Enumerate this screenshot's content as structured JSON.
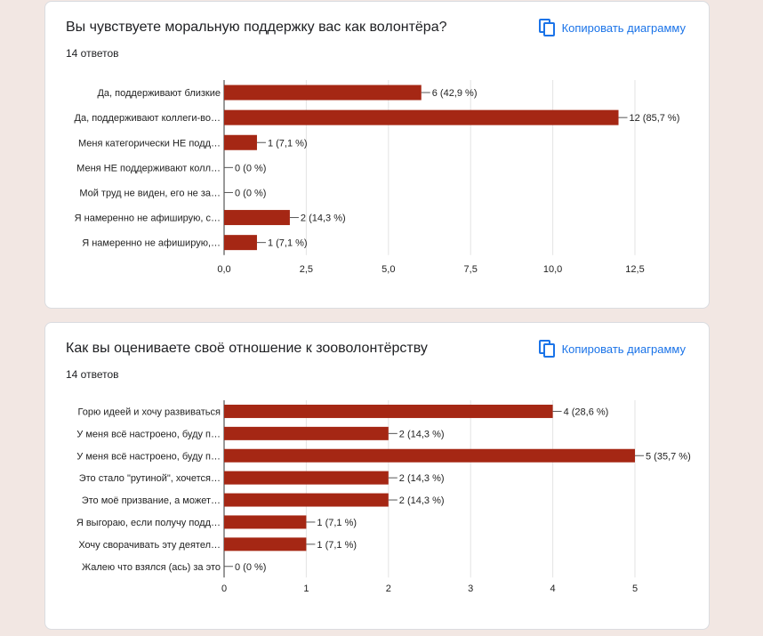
{
  "copy_label": "Копировать диаграмму",
  "copy_icon": "copy-icon",
  "bar_color": "#a52714",
  "questions": [
    {
      "title": "Вы чувствуете моральную поддержку вас как волонтёра?",
      "responses": "14 ответов",
      "chart_data": {
        "type": "bar",
        "orientation": "horizontal",
        "categories": [
          "Да, поддерживают близкие",
          "Да, поддерживают коллеги-во…",
          "Меня категорически НЕ подд…",
          "Меня НЕ поддерживают колл…",
          "Мой труд не виден, его не за…",
          "Я намеренно не афиширую, с…",
          "Я намеренно не афиширую,…"
        ],
        "values": [
          6,
          12,
          1,
          0,
          0,
          2,
          1
        ],
        "data_labels": [
          "6 (42,9 %)",
          "12 (85,7 %)",
          "1 (7,1 %)",
          "0 (0 %)",
          "0 (0 %)",
          "2 (14,3 %)",
          "1 (7,1 %)"
        ],
        "xlim": [
          0,
          12.5
        ],
        "ticks": [
          0,
          2.5,
          5,
          7.5,
          10,
          12.5
        ],
        "tick_labels": [
          "0,0",
          "2,5",
          "5,0",
          "7,5",
          "10,0",
          "12,5"
        ],
        "grid": true
      }
    },
    {
      "title": "Как вы оцениваете своё отношение к зооволонтёрству",
      "responses": "14 ответов",
      "chart_data": {
        "type": "bar",
        "orientation": "horizontal",
        "categories": [
          "Горю идеей и хочу развиваться",
          "У меня всё настроено, буду п…",
          "У меня всё настроено, буду п…",
          "Это стало \"рутиной\", хочется…",
          "Это моё призвание, а может…",
          "Я выгораю, если получу подд…",
          "Хочу сворачивать эту деятел…",
          "Жалею что взялся (ась) за это"
        ],
        "values": [
          4,
          2,
          5,
          2,
          2,
          1,
          1,
          0
        ],
        "data_labels": [
          "4 (28,6 %)",
          "2 (14,3 %)",
          "5 (35,7 %)",
          "2 (14,3 %)",
          "2 (14,3 %)",
          "1 (7,1 %)",
          "1 (7,1 %)",
          "0 (0 %)"
        ],
        "xlim": [
          0,
          5
        ],
        "ticks": [
          0,
          1,
          2,
          3,
          4,
          5
        ],
        "tick_labels": [
          "0",
          "1",
          "2",
          "3",
          "4",
          "5"
        ],
        "grid": true
      }
    }
  ]
}
